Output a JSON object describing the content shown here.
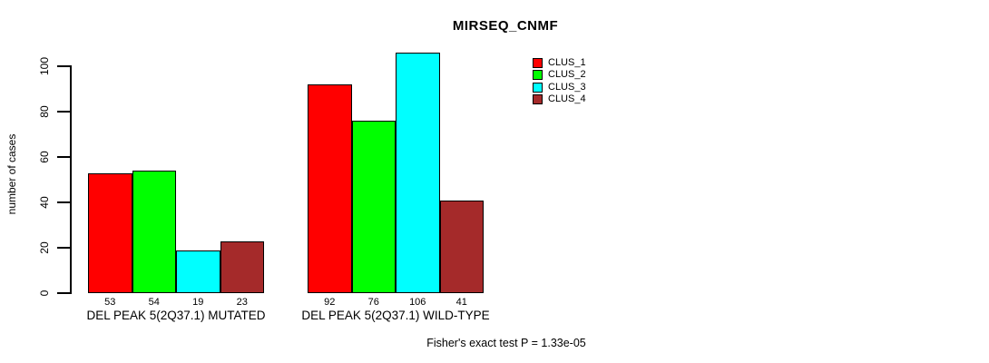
{
  "chart_data": {
    "type": "bar",
    "title": "MIRSEQ_CNMF",
    "ylabel": "number of cases",
    "xlabel": "",
    "categories": [
      "DEL PEAK 5(2Q37.1) MUTATED",
      "DEL PEAK 5(2Q37.1) WILD-TYPE"
    ],
    "series": [
      {
        "name": "CLUS_1",
        "color": "#FF0000",
        "values": [
          53,
          92
        ]
      },
      {
        "name": "CLUS_2",
        "color": "#00FF00",
        "values": [
          54,
          76
        ]
      },
      {
        "name": "CLUS_3",
        "color": "#00FFFF",
        "values": [
          19,
          106
        ]
      },
      {
        "name": "CLUS_4",
        "color": "#A52A2A",
        "values": [
          23,
          41
        ]
      }
    ],
    "bar_value_labels": {
      "DEL PEAK 5(2Q37.1) MUTATED": [
        53,
        54,
        19,
        23
      ],
      "DEL PEAK 5(2Q37.1) WILD-TYPE": [
        92,
        76,
        106,
        41
      ]
    },
    "yticks": [
      0,
      20,
      40,
      60,
      80,
      100
    ],
    "ylim": [
      0,
      106
    ],
    "grid": false,
    "legend_position": "top-right",
    "legend_entries": [
      "CLUS_1",
      "CLUS_2",
      "CLUS_3",
      "CLUS_4"
    ],
    "annotation": "Fisher's exact test P = 1.33e-05"
  },
  "colors": {
    "background": "#FFFFFF",
    "axis": "#000000",
    "text": "#000000",
    "clus_1": "#FF0000",
    "clus_2": "#00FF00",
    "clus_3": "#00FFFF",
    "clus_4": "#A52A2A"
  }
}
